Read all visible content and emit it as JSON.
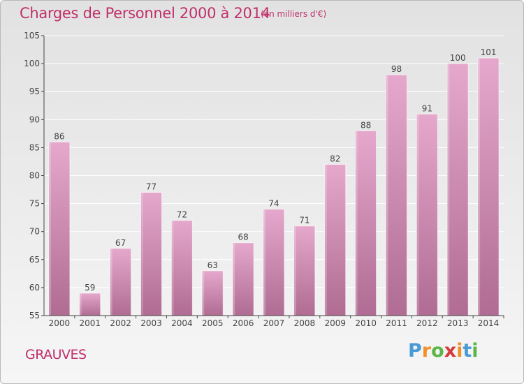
{
  "header": {
    "title": "Charges de Personnel 2000 à 2014",
    "subtitle": "(en milliers d'€)"
  },
  "footer": {
    "commune": "GRAUVES",
    "logo_text": "Proxiti",
    "logo_colors": [
      "#4a9ad6",
      "#f0902a",
      "#5ab646",
      "#d53a3a",
      "#f0902a",
      "#4a9ad6",
      "#5ab646"
    ]
  },
  "colors": {
    "accent": "#c0306a",
    "bar_top": "#e5a8cc",
    "bar_bottom": "#b06c93",
    "axis": "#444444",
    "grid": "#ffffff"
  },
  "chart_data": {
    "type": "bar",
    "title": "Charges de Personnel 2000 à 2014",
    "subtitle": "(en milliers d'€)",
    "categories": [
      "2000",
      "2001",
      "2002",
      "2003",
      "2004",
      "2005",
      "2006",
      "2007",
      "2008",
      "2009",
      "2010",
      "2011",
      "2012",
      "2013",
      "2014"
    ],
    "values": [
      86,
      59,
      67,
      77,
      72,
      63,
      68,
      74,
      71,
      82,
      88,
      98,
      91,
      100,
      101
    ],
    "ylim": [
      55,
      105
    ],
    "yticks": [
      55,
      60,
      65,
      70,
      75,
      80,
      85,
      90,
      95,
      100,
      105
    ],
    "grid": true,
    "data_labels": true
  }
}
